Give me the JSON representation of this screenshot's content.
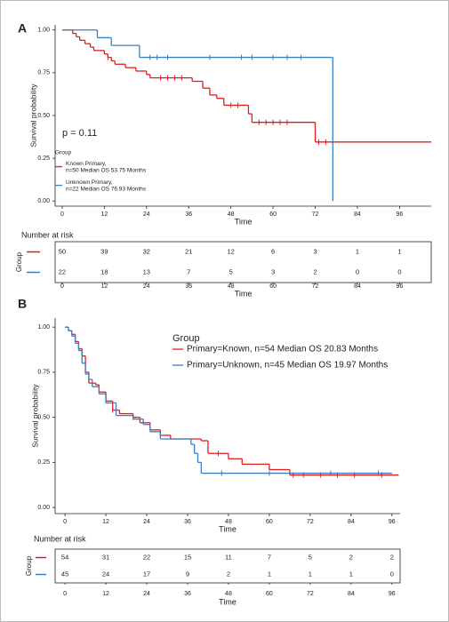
{
  "chart_data": [
    {
      "type": "step",
      "panel_label": "A",
      "xlabel": "Time",
      "ylabel": "Survival probability",
      "annotation": "p = 0.11",
      "legend_title": "Group",
      "xlim": [
        -2,
        105
      ],
      "ylim": [
        -0.03,
        1.03
      ],
      "xticks": [
        0,
        12,
        24,
        36,
        48,
        60,
        72,
        84,
        96
      ],
      "yticks": [
        {
          "value": 0,
          "label": "0.00"
        },
        0.25,
        {
          "value": 0.5,
          "label": "0.50"
        },
        0.75,
        {
          "value": 1,
          "label": "1.00"
        }
      ],
      "series": [
        {
          "name": "Known Primary,\nn=50 Median OS 53.75 Months",
          "color": "#e41a1c",
          "x": [
            0,
            3,
            4,
            5,
            6.5,
            8,
            9,
            12,
            13,
            14,
            15,
            18,
            21,
            24,
            25,
            37,
            40,
            42,
            44,
            46,
            53,
            54,
            72,
            105
          ],
          "values": [
            1,
            0.98,
            0.96,
            0.94,
            0.92,
            0.9,
            0.88,
            0.86,
            0.84,
            0.82,
            0.8,
            0.78,
            0.76,
            0.74,
            0.72,
            0.7,
            0.66,
            0.62,
            0.6,
            0.56,
            0.51,
            0.46,
            0.345,
            0.345
          ],
          "censor_x": [
            13,
            28,
            30,
            32,
            34,
            48,
            50,
            56,
            58,
            60,
            62,
            64,
            73,
            75
          ]
        },
        {
          "name": "Unknown Primary,\nn=22 Median OS 76.93 Months",
          "color": "#3a7fc1",
          "x": [
            0,
            10,
            14,
            22,
            77
          ],
          "values": [
            1,
            0.955,
            0.91,
            0.84,
            0
          ],
          "censor_x": [
            25,
            27,
            30,
            42,
            51,
            54,
            60,
            64,
            68
          ]
        }
      ]
    },
    {
      "type": "table",
      "title": "Number at risk",
      "ylabel": "Group",
      "xlabel": "Time",
      "xlim": [
        -2,
        105
      ],
      "xticks": [
        0,
        12,
        24,
        36,
        48,
        60,
        72,
        84,
        96
      ],
      "series": [
        {
          "color": "#e41a1c",
          "values": [
            50,
            39,
            32,
            21,
            12,
            6,
            3,
            1,
            1
          ]
        },
        {
          "color": "#3a7fc1",
          "values": [
            22,
            18,
            13,
            7,
            5,
            3,
            2,
            0,
            0
          ]
        }
      ]
    },
    {
      "type": "step",
      "panel_label": "B",
      "xlabel": "Time",
      "ylabel": "Survival probability",
      "legend_title": "Group",
      "xlim": [
        -2.9,
        98.4
      ],
      "ylim": [
        -0.034,
        1.05
      ],
      "xticks": [
        0,
        12,
        24,
        36,
        48,
        60,
        72,
        84,
        96
      ],
      "yticks": [
        {
          "value": 0,
          "label": "0.00"
        },
        0.25,
        {
          "value": 0.5,
          "label": "0.50"
        },
        0.75,
        {
          "value": 1,
          "label": "1.00"
        }
      ],
      "series": [
        {
          "name": "Primary=Known, n=54 Median OS 20.83 Months",
          "color": "#e41a1c",
          "x": [
            0,
            1,
            2,
            3,
            4,
            5,
            6,
            7,
            9,
            10,
            12,
            14,
            16,
            20,
            22,
            25,
            28,
            31,
            40,
            42,
            48,
            52,
            60,
            66,
            98
          ],
          "values": [
            1,
            0.98,
            0.96,
            0.92,
            0.88,
            0.84,
            0.75,
            0.69,
            0.68,
            0.64,
            0.59,
            0.54,
            0.52,
            0.5,
            0.47,
            0.43,
            0.4,
            0.38,
            0.37,
            0.3,
            0.27,
            0.24,
            0.21,
            0.18,
            0.18
          ],
          "censor_x": [
            14,
            20,
            45,
            67,
            70,
            75,
            80,
            85,
            93
          ]
        },
        {
          "name": "Primary=Unknown, n=45 Median OS 19.97 Months",
          "color": "#3a7fc1",
          "x": [
            0,
            1,
            2,
            3,
            4,
            5,
            6,
            7,
            8,
            10,
            12,
            15,
            20,
            23,
            25,
            28,
            37,
            38,
            39,
            40,
            96
          ],
          "values": [
            1,
            0.98,
            0.95,
            0.91,
            0.87,
            0.8,
            0.74,
            0.71,
            0.67,
            0.63,
            0.58,
            0.51,
            0.49,
            0.46,
            0.42,
            0.38,
            0.35,
            0.3,
            0.25,
            0.19,
            0.19
          ],
          "censor_x": [
            46,
            60,
            78,
            92
          ]
        }
      ]
    },
    {
      "type": "table",
      "title": "Number at risk",
      "ylabel": "Group",
      "xlabel": "Time",
      "xlim": [
        -2.9,
        98.4
      ],
      "xticks": [
        0,
        12,
        24,
        36,
        48,
        60,
        72,
        84,
        96
      ],
      "series": [
        {
          "color": "#e41a1c",
          "values": [
            54,
            31,
            22,
            15,
            11,
            7,
            5,
            2,
            2
          ]
        },
        {
          "color": "#3a7fc1",
          "values": [
            45,
            24,
            17,
            9,
            2,
            1,
            1,
            1,
            0
          ]
        }
      ]
    }
  ]
}
